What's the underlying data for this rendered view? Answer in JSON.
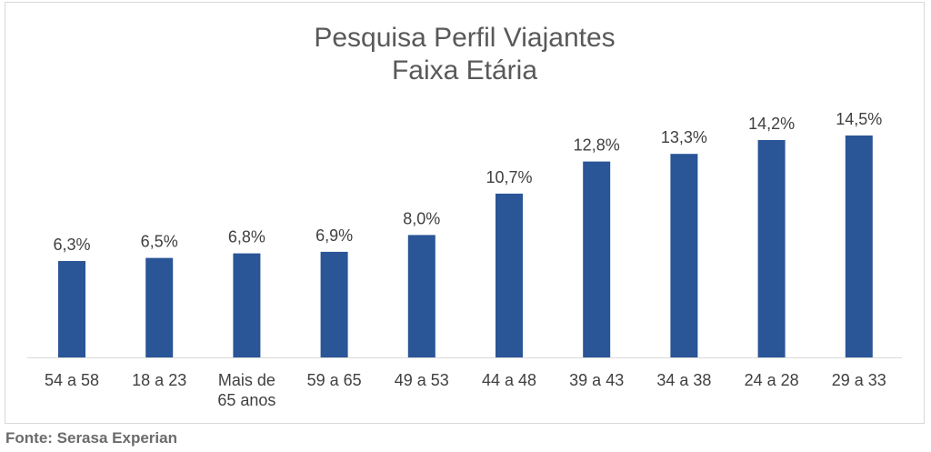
{
  "chart_data": {
    "type": "bar",
    "title": "Pesquisa Perfil Viajantes",
    "subtitle": "Faixa Etária",
    "categories": [
      [
        "54 a 58"
      ],
      [
        "18 a 23"
      ],
      [
        "Mais de",
        "65 anos"
      ],
      [
        "59 a 65"
      ],
      [
        "49 a 53"
      ],
      [
        "44 a 48"
      ],
      [
        "39 a 43"
      ],
      [
        "34 a 38"
      ],
      [
        "24 a 28"
      ],
      [
        "29 a 33"
      ]
    ],
    "values": [
      6.3,
      6.5,
      6.8,
      6.9,
      8.0,
      10.7,
      12.8,
      13.3,
      14.2,
      14.5
    ],
    "data_labels": [
      "6,3%",
      "6,5%",
      "6,8%",
      "6,9%",
      "8,0%",
      "10,7%",
      "12,8%",
      "13,3%",
      "14,2%",
      "14,5%"
    ],
    "ylim": [
      0,
      14.5
    ],
    "xlabel": "",
    "ylabel": "",
    "grid": false,
    "bar_color": "#2a5597",
    "label_color": "#404040",
    "axis_color": "#d9d9d9"
  },
  "source": "Fonte: Serasa Experian"
}
